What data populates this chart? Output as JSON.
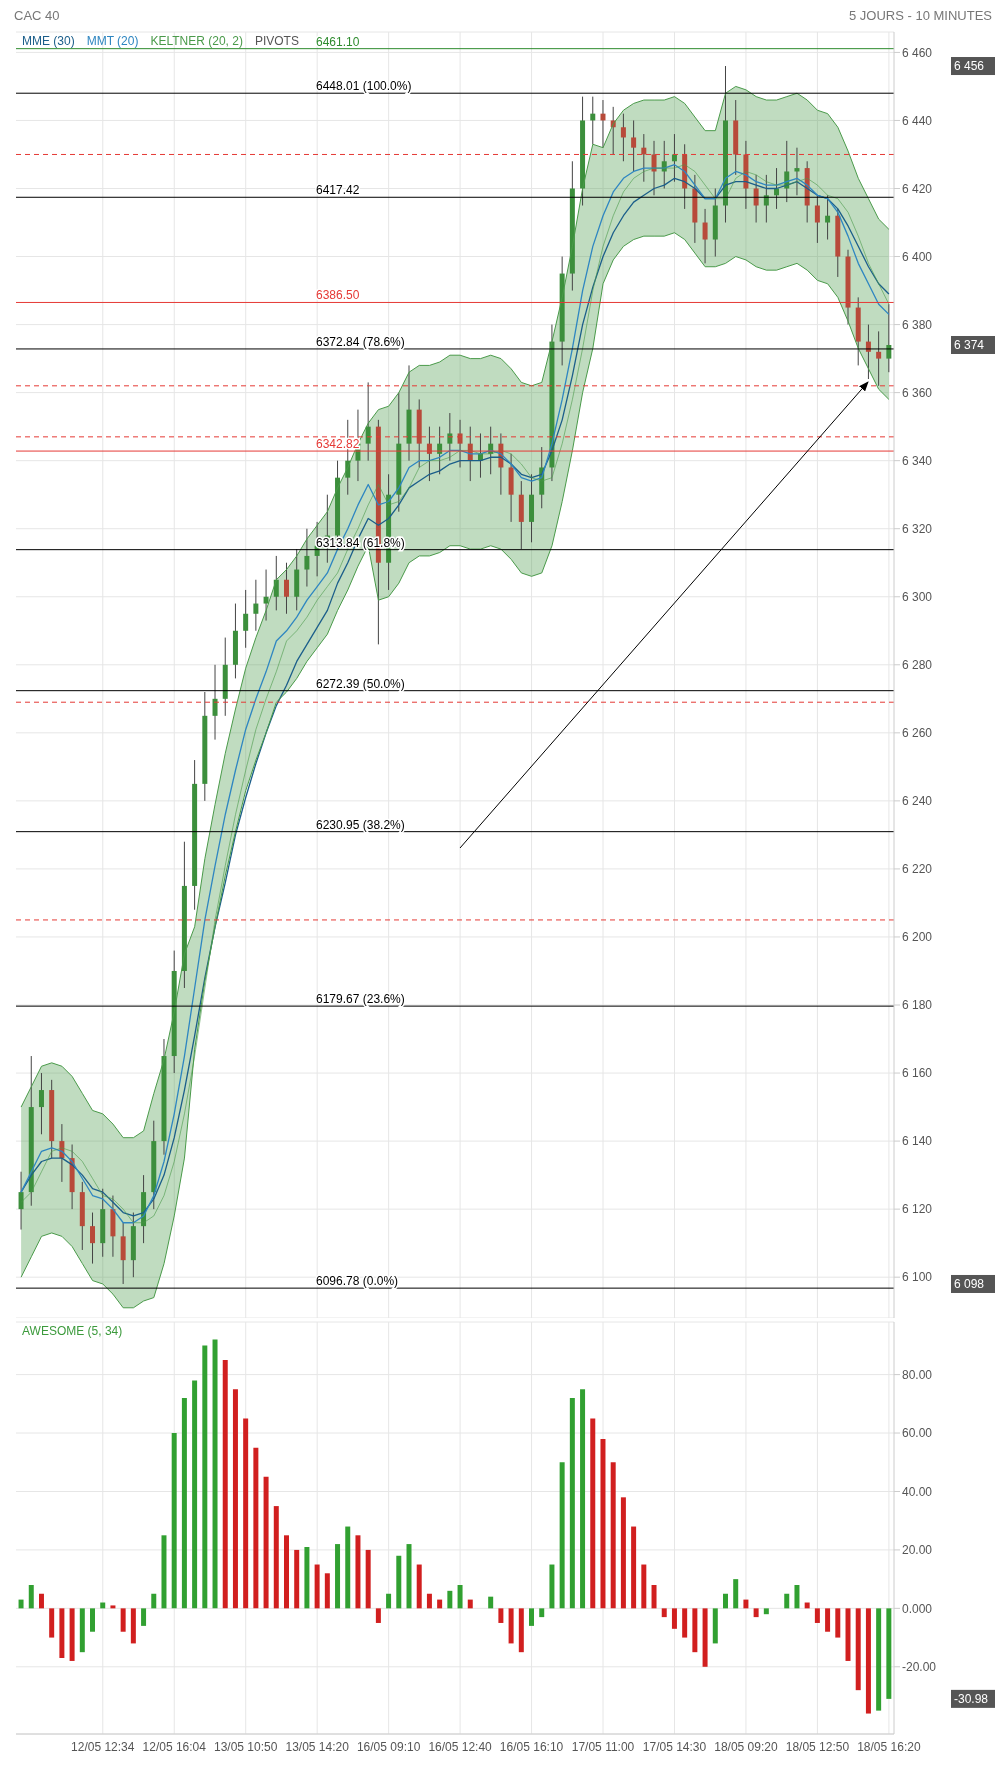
{
  "chart_data": [
    {
      "type": "candlestick",
      "title": "CAC 40",
      "subtitle": "5 JOURS - 10 MINUTES",
      "legend": "top left",
      "grid": true,
      "tick_labels": "y",
      "categories": [
        null,
        null,
        null,
        null,
        null,
        null,
        null,
        null,
        null,
        null,
        null,
        null,
        null,
        null,
        null,
        null,
        null,
        null,
        null,
        null,
        null,
        null,
        null,
        null,
        null,
        null,
        null,
        null,
        null,
        null,
        null,
        null,
        null,
        null,
        null,
        null,
        null,
        null,
        null,
        null,
        null,
        null,
        null,
        null,
        null,
        null,
        null,
        null,
        null,
        null,
        null,
        null,
        null,
        null,
        null,
        null,
        null,
        null,
        null,
        null,
        null,
        null,
        null,
        null,
        null,
        null,
        null,
        null,
        null,
        null,
        null,
        null,
        null,
        null,
        null,
        null,
        null,
        null,
        null,
        null,
        null,
        null,
        null,
        null,
        null,
        null
      ],
      "ylim": [
        6088,
        6466
      ],
      "yticks": [
        {
          "value": 6100,
          "label": "6 100"
        },
        {
          "value": 6120,
          "label": "6 120"
        },
        {
          "value": 6140,
          "label": "6 140"
        },
        {
          "value": 6160,
          "label": "6 160"
        },
        {
          "value": 6180,
          "label": "6 180"
        },
        {
          "value": 6200,
          "label": "6 200"
        },
        {
          "value": 6220,
          "label": "6 220"
        },
        {
          "value": 6240,
          "label": "6 240"
        },
        {
          "value": 6260,
          "label": "6 260"
        },
        {
          "value": 6280,
          "label": "6 280"
        },
        {
          "value": 6300,
          "label": "6 300"
        },
        {
          "value": 6320,
          "label": "6 320"
        },
        {
          "value": 6340,
          "label": "6 340"
        },
        {
          "value": 6360,
          "label": "6 360"
        },
        {
          "value": 6380,
          "label": "6 380"
        },
        {
          "value": 6400,
          "label": "6 400"
        },
        {
          "value": 6420,
          "label": "6 420"
        },
        {
          "value": 6440,
          "label": "6 440"
        },
        {
          "value": 6460,
          "label": "6 460"
        }
      ],
      "series": [
        {
          "colors": [
            "#3c8f3c",
            "#3c8f3c",
            "#3c8f3c",
            "#b84a3a",
            "#b84a3a",
            "#b84a3a",
            "#b84a3a",
            "#b84a3a",
            "#3c8f3c",
            "#b84a3a",
            "#b84a3a",
            "#3c8f3c",
            "#3c8f3c",
            "#3c8f3c",
            "#3c8f3c",
            "#3c8f3c",
            "#3c8f3c",
            "#3c8f3c",
            "#3c8f3c",
            "#3c8f3c",
            "#3c8f3c",
            "#3c8f3c",
            "#3c8f3c",
            "#3c8f3c",
            "#3c8f3c",
            "#3c8f3c",
            "#b84a3a",
            "#3c8f3c",
            "#3c8f3c",
            "#3c8f3c",
            "#3c8f3c",
            "#3c8f3c",
            "#3c8f3c",
            "#3c8f3c",
            "#3c8f3c",
            "#b84a3a",
            "#3c8f3c",
            "#3c8f3c",
            "#3c8f3c",
            "#b84a3a",
            "#b84a3a",
            "#3c8f3c",
            "#3c8f3c",
            "#b84a3a",
            "#b84a3a",
            "#3c8f3c",
            "#3c8f3c",
            "#b84a3a",
            "#b84a3a",
            "#b84a3a",
            "#3c8f3c",
            "#3c8f3c",
            "#3c8f3c",
            "#3c8f3c",
            "#3c8f3c",
            "#3c8f3c",
            "#3c8f3c",
            "#b84a3a",
            "#b84a3a",
            "#b84a3a",
            "#b84a3a",
            "#b84a3a",
            "#b84a3a",
            "#3c8f3c",
            "#3c8f3c",
            "#b84a3a",
            "#b84a3a",
            "#b84a3a",
            "#3c8f3c",
            "#3c8f3c",
            "#b84a3a",
            "#b84a3a",
            "#b84a3a",
            "#3c8f3c",
            "#3c8f3c",
            "#3c8f3c",
            "#3c8f3c",
            "#b84a3a",
            "#b84a3a",
            "#3c8f3c",
            "#b84a3a",
            "#b84a3a",
            "#b84a3a",
            "#b84a3a",
            "#b84a3a",
            "#3c8f3c"
          ],
          "ohlc": [
            [
              6120,
              6131,
              6114,
              6125
            ],
            [
              6125,
              6165,
              6121,
              6150
            ],
            [
              6150,
              6160,
              6142,
              6155
            ],
            [
              6155,
              6158,
              6135,
              6140
            ],
            [
              6140,
              6145,
              6128,
              6135
            ],
            [
              6135,
              6139,
              6120,
              6125
            ],
            [
              6125,
              6128,
              6108,
              6115
            ],
            [
              6115,
              6119,
              6104,
              6110
            ],
            [
              6110,
              6126,
              6106,
              6120
            ],
            [
              6120,
              6124,
              6106,
              6112
            ],
            [
              6112,
              6116,
              6098,
              6105
            ],
            [
              6105,
              6119,
              6100,
              6115
            ],
            [
              6115,
              6130,
              6110,
              6125
            ],
            [
              6125,
              6146,
              6120,
              6140
            ],
            [
              6140,
              6170,
              6136,
              6165
            ],
            [
              6165,
              6196,
              6160,
              6190
            ],
            [
              6190,
              6228,
              6185,
              6215
            ],
            [
              6215,
              6252,
              6208,
              6245
            ],
            [
              6245,
              6272,
              6240,
              6265
            ],
            [
              6265,
              6280,
              6258,
              6270
            ],
            [
              6270,
              6288,
              6265,
              6280
            ],
            [
              6280,
              6298,
              6276,
              6290
            ],
            [
              6290,
              6302,
              6285,
              6295
            ],
            [
              6295,
              6305,
              6290,
              6298
            ],
            [
              6298,
              6308,
              6293,
              6300
            ],
            [
              6300,
              6312,
              6296,
              6305
            ],
            [
              6305,
              6310,
              6295,
              6300
            ],
            [
              6300,
              6314,
              6296,
              6308
            ],
            [
              6308,
              6320,
              6303,
              6312
            ],
            [
              6312,
              6322,
              6306,
              6315
            ],
            [
              6315,
              6330,
              6310,
              6318
            ],
            [
              6318,
              6340,
              6314,
              6335
            ],
            [
              6335,
              6352,
              6330,
              6340
            ],
            [
              6340,
              6355,
              6334,
              6345
            ],
            [
              6345,
              6363,
              6340,
              6350
            ],
            [
              6350,
              6352,
              6286,
              6310
            ],
            [
              6310,
              6336,
              6302,
              6330
            ],
            [
              6330,
              6360,
              6325,
              6345
            ],
            [
              6345,
              6368,
              6340,
              6355
            ],
            [
              6355,
              6358,
              6338,
              6345
            ],
            [
              6345,
              6350,
              6334,
              6342
            ],
            [
              6342,
              6350,
              6336,
              6345
            ],
            [
              6345,
              6354,
              6340,
              6348
            ],
            [
              6348,
              6352,
              6338,
              6345
            ],
            [
              6345,
              6350,
              6334,
              6340
            ],
            [
              6340,
              6348,
              6335,
              6342
            ],
            [
              6342,
              6350,
              6336,
              6345
            ],
            [
              6345,
              6348,
              6330,
              6338
            ],
            [
              6338,
              6342,
              6322,
              6330
            ],
            [
              6330,
              6334,
              6314,
              6322
            ],
            [
              6322,
              6336,
              6316,
              6330
            ],
            [
              6330,
              6344,
              6326,
              6338
            ],
            [
              6338,
              6380,
              6334,
              6375
            ],
            [
              6375,
              6400,
              6368,
              6395
            ],
            [
              6395,
              6428,
              6390,
              6420
            ],
            [
              6420,
              6447,
              6415,
              6440
            ],
            [
              6440,
              6447,
              6433,
              6442
            ],
            [
              6442,
              6446,
              6432,
              6440
            ],
            [
              6440,
              6444,
              6430,
              6438
            ],
            [
              6438,
              6442,
              6428,
              6435
            ],
            [
              6435,
              6440,
              6425,
              6432
            ],
            [
              6432,
              6436,
              6422,
              6430
            ],
            [
              6430,
              6434,
              6418,
              6425
            ],
            [
              6425,
              6434,
              6420,
              6428
            ],
            [
              6428,
              6436,
              6422,
              6430
            ],
            [
              6430,
              6433,
              6414,
              6420
            ],
            [
              6420,
              6424,
              6404,
              6410
            ],
            [
              6410,
              6414,
              6398,
              6405
            ],
            [
              6405,
              6420,
              6400,
              6415
            ],
            [
              6415,
              6456,
              6410,
              6440
            ],
            [
              6440,
              6446,
              6424,
              6430
            ],
            [
              6430,
              6434,
              6414,
              6420
            ],
            [
              6420,
              6424,
              6410,
              6415
            ],
            [
              6415,
              6424,
              6410,
              6418
            ],
            [
              6418,
              6426,
              6414,
              6420
            ],
            [
              6420,
              6434,
              6416,
              6425
            ],
            [
              6425,
              6432,
              6418,
              6426
            ],
            [
              6426,
              6428,
              6410,
              6415
            ],
            [
              6415,
              6418,
              6404,
              6410
            ],
            [
              6410,
              6418,
              6405,
              6412
            ],
            [
              6412,
              6414,
              6394,
              6400
            ],
            [
              6400,
              6402,
              6380,
              6385
            ],
            [
              6385,
              6388,
              6368,
              6375
            ],
            [
              6375,
              6380,
              6364,
              6372
            ],
            [
              6372,
              6378,
              6362,
              6370
            ],
            [
              6370,
              6386,
              6366,
              6374
            ]
          ]
        },
        {
          "type": "line",
          "name": "MME (30)",
          "color": "#1b5e8a",
          "values": [
            6125,
            6130,
            6134,
            6135,
            6135,
            6133,
            6130,
            6126,
            6125,
            6122,
            6119,
            6118,
            6119,
            6123,
            6130,
            6141,
            6155,
            6171,
            6188,
            6203,
            6216,
            6230,
            6241,
            6251,
            6260,
            6268,
            6274,
            6281,
            6286,
            6291,
            6296,
            6304,
            6310,
            6317,
            6323,
            6321,
            6323,
            6327,
            6332,
            6334,
            6336,
            6337,
            6339,
            6340,
            6340,
            6340,
            6341,
            6341,
            6339,
            6336,
            6335,
            6336,
            6343,
            6352,
            6365,
            6380,
            6391,
            6400,
            6407,
            6412,
            6416,
            6418,
            6420,
            6421,
            6423,
            6422,
            6420,
            6417,
            6417,
            6421,
            6422,
            6422,
            6421,
            6420,
            6420,
            6421,
            6422,
            6420,
            6418,
            6417,
            6414,
            6409,
            6403,
            6397,
            6392,
            6389
          ]
        },
        {
          "type": "line",
          "name": "MMT (20)",
          "color": "#2e86c1",
          "values": [
            6125,
            6131,
            6137,
            6138,
            6137,
            6134,
            6129,
            6124,
            6123,
            6120,
            6116,
            6116,
            6118,
            6124,
            6134,
            6148,
            6165,
            6185,
            6205,
            6221,
            6236,
            6249,
            6261,
            6270,
            6278,
            6287,
            6290,
            6294,
            6299,
            6303,
            6307,
            6314,
            6320,
            6327,
            6333,
            6327,
            6328,
            6332,
            6338,
            6340,
            6340,
            6341,
            6343,
            6343,
            6342,
            6342,
            6343,
            6342,
            6339,
            6335,
            6334,
            6335,
            6345,
            6358,
            6373,
            6390,
            6403,
            6412,
            6419,
            6423,
            6425,
            6426,
            6426,
            6426,
            6427,
            6425,
            6421,
            6417,
            6417,
            6423,
            6425,
            6424,
            6422,
            6421,
            6421,
            6422,
            6423,
            6421,
            6418,
            6417,
            6413,
            6406,
            6398,
            6392,
            6386,
            6383
          ]
        },
        {
          "type": "line",
          "name": "KELTNER (20, 2)",
          "color": "#4a9a4a",
          "values": [
            6122,
            6125,
            6131,
            6137,
            6138,
            6137,
            6134,
            6129,
            6124,
            6123,
            6120,
            6116,
            6116,
            6118,
            6124,
            6134,
            6148,
            6165,
            6185,
            6205,
            6221,
            6236,
            6249,
            6261,
            6270,
            6278,
            6287,
            6290,
            6294,
            6299,
            6303,
            6307,
            6314,
            6320,
            6327,
            6333,
            6327,
            6328,
            6332,
            6338,
            6340,
            6340,
            6341,
            6343,
            6343,
            6342,
            6342,
            6343,
            6342,
            6339,
            6335,
            6334,
            6335,
            6345,
            6358,
            6373,
            6390,
            6403,
            6412,
            6419,
            6423,
            6425,
            6426,
            6426,
            6426,
            6427,
            6425,
            6421,
            6417,
            6417,
            6423,
            6425,
            6424,
            6422,
            6421,
            6421,
            6422,
            6423,
            6421,
            6418,
            6417,
            6413,
            6406,
            6398,
            6392,
            6386
          ],
          "upper": [
            6150,
            6156,
            6162,
            6163,
            6162,
            6159,
            6154,
            6149,
            6148,
            6145,
            6141,
            6141,
            6143,
            6154,
            6164,
            6178,
            6195,
            6203,
            6223,
            6239,
            6254,
            6267,
            6279,
            6288,
            6296,
            6305,
            6308,
            6312,
            6317,
            6321,
            6325,
            6332,
            6338,
            6345,
            6351,
            6355,
            6356,
            6360,
            6366,
            6368,
            6368,
            6369,
            6371,
            6371,
            6370,
            6370,
            6371,
            6370,
            6367,
            6363,
            6362,
            6363,
            6375,
            6388,
            6403,
            6420,
            6433,
            6432,
            6439,
            6443,
            6445,
            6446,
            6446,
            6446,
            6447,
            6445,
            6441,
            6437,
            6437,
            6448,
            6450,
            6449,
            6447,
            6446,
            6446,
            6447,
            6448,
            6446,
            6443,
            6442,
            6438,
            6431,
            6423,
            6417,
            6411,
            6408
          ],
          "lower": [
            6100,
            6106,
            6112,
            6113,
            6112,
            6109,
            6104,
            6099,
            6098,
            6095,
            6091,
            6091,
            6093,
            6094,
            6104,
            6118,
            6135,
            6167,
            6187,
            6203,
            6218,
            6231,
            6243,
            6252,
            6260,
            6269,
            6272,
            6276,
            6281,
            6285,
            6289,
            6296,
            6302,
            6309,
            6315,
            6299,
            6300,
            6304,
            6310,
            6312,
            6312,
            6313,
            6315,
            6315,
            6314,
            6314,
            6315,
            6314,
            6311,
            6307,
            6306,
            6307,
            6315,
            6328,
            6343,
            6360,
            6373,
            6392,
            6399,
            6403,
            6405,
            6406,
            6406,
            6406,
            6407,
            6405,
            6401,
            6397,
            6397,
            6398,
            6400,
            6399,
            6397,
            6396,
            6396,
            6397,
            6398,
            6396,
            6393,
            6392,
            6388,
            6381,
            6373,
            6367,
            6361,
            6358
          ]
        },
        {
          "type": "line",
          "color": "#4a9a4a",
          "values": [
            6150,
            6156,
            6162,
            6163,
            6162,
            6159,
            6154,
            6149,
            6148,
            6145,
            6141,
            6141,
            6143,
            6154,
            6164,
            6178,
            6195,
            6203,
            6223,
            6239,
            6254,
            6267,
            6279,
            6288,
            6296,
            6305,
            6308,
            6312,
            6317,
            6321,
            6325,
            6332,
            6338,
            6345,
            6351,
            6355,
            6356,
            6360,
            6366,
            6368,
            6368,
            6369,
            6371,
            6371,
            6370,
            6370,
            6371,
            6370,
            6367,
            6363,
            6362,
            6363,
            6375,
            6388,
            6403,
            6420,
            6433,
            6432,
            6439,
            6443,
            6445,
            6446,
            6446,
            6446,
            6447,
            6445,
            6441,
            6437,
            6437,
            6448,
            6450,
            6449,
            6447,
            6446,
            6446,
            6447,
            6448,
            6446,
            6443,
            6442,
            6438,
            6431,
            6423,
            6417,
            6411,
            6408
          ]
        },
        {
          "type": "line",
          "color": "#4a9a4a",
          "values": [
            6100,
            6106,
            6112,
            6113,
            6112,
            6109,
            6104,
            6099,
            6098,
            6095,
            6091,
            6091,
            6093,
            6094,
            6104,
            6118,
            6135,
            6167,
            6187,
            6203,
            6218,
            6231,
            6243,
            6252,
            6260,
            6269,
            6272,
            6276,
            6281,
            6285,
            6289,
            6296,
            6302,
            6309,
            6315,
            6299,
            6300,
            6304,
            6310,
            6312,
            6312,
            6313,
            6315,
            6315,
            6314,
            6314,
            6315,
            6314,
            6311,
            6307,
            6306,
            6307,
            6315,
            6328,
            6343,
            6360,
            6373,
            6392,
            6399,
            6403,
            6405,
            6406,
            6406,
            6406,
            6407,
            6405,
            6401,
            6397,
            6397,
            6398,
            6400,
            6399,
            6397,
            6396,
            6396,
            6397,
            6398,
            6396,
            6393,
            6392,
            6388,
            6381,
            6373,
            6367,
            6361,
            6358
          ]
        }
      ],
      "ref_lines": [
        {
          "axis": "y",
          "value": 6448.01,
          "label": "6448.01  (100.0%)",
          "color": "#000000"
        },
        {
          "axis": "y",
          "value": 6372.84,
          "label": "6372.84  (78.6%)",
          "color": "#000000"
        },
        {
          "axis": "y",
          "value": 6313.84,
          "label": "6313.84  (61.8%)",
          "color": "#000000"
        },
        {
          "axis": "y",
          "value": 6272.39,
          "label": "6272.39  (50.0%)",
          "color": "#000000"
        },
        {
          "axis": "y",
          "value": 6230.95,
          "label": "6230.95  (38.2%)",
          "color": "#000000"
        },
        {
          "axis": "y",
          "value": 6179.67,
          "label": "6179.67  (23.6%)",
          "color": "#000000"
        },
        {
          "axis": "y",
          "value": 6096.78,
          "label": "6096.78  (0.0%)",
          "color": "#000000"
        },
        {
          "axis": "y",
          "value": 6461.1,
          "label": "6461.10",
          "color": "#2e8b2e"
        },
        {
          "axis": "y",
          "value": 6417.42,
          "label": "6417.42",
          "color": "#000000"
        },
        {
          "axis": "y",
          "value": 6386.5,
          "label": "6386.50",
          "color": "#e53935"
        },
        {
          "axis": "y",
          "value": 6342.82,
          "label": "6342.82",
          "color": "#e53935"
        },
        {
          "axis": "y",
          "value": 6430,
          "color": "#e53935",
          "line_style": "dashed"
        },
        {
          "axis": "y",
          "value": 6362,
          "color": "#e53935",
          "line_style": "dashed"
        },
        {
          "axis": "y",
          "value": 6347,
          "color": "#e53935",
          "line_style": "dashed"
        },
        {
          "axis": "y",
          "value": 6269,
          "color": "#e53935",
          "line_style": "dashed"
        },
        {
          "axis": "y",
          "value": 6205,
          "color": "#e53935",
          "line_style": "dashed"
        }
      ],
      "annotations": [
        "PIVOTS",
        "6 456",
        "6 374",
        "6 098"
      ]
    },
    {
      "type": "bar",
      "title": "AWESOME (5, 34)",
      "grid": true,
      "categories": [
        null,
        null,
        null,
        null,
        null,
        null,
        null,
        null,
        "12/05 12:34",
        null,
        null,
        null,
        null,
        null,
        null,
        "12/05 16:04",
        null,
        null,
        null,
        null,
        null,
        null,
        "13/05 10:50",
        null,
        null,
        null,
        null,
        null,
        null,
        "13/05 14:20",
        null,
        null,
        null,
        null,
        null,
        null,
        "16/05 09:10",
        null,
        null,
        null,
        null,
        null,
        null,
        "16/05 12:40",
        null,
        null,
        null,
        null,
        null,
        null,
        "16/05 16:10",
        null,
        null,
        null,
        null,
        null,
        null,
        "17/05 11:00",
        null,
        null,
        null,
        null,
        null,
        null,
        "17/05 14:30",
        null,
        null,
        null,
        null,
        null,
        null,
        "18/05 09:20",
        null,
        null,
        null,
        null,
        null,
        null,
        "18/05 12:50",
        null,
        null,
        null,
        null,
        null,
        null,
        "18/05 16:20"
      ],
      "ylim": [
        -43,
        98
      ],
      "yticks": [
        {
          "value": -20,
          "label": "-20.00"
        },
        {
          "value": 0,
          "label": "0.000"
        },
        {
          "value": 20,
          "label": "20.00"
        },
        {
          "value": 40,
          "label": "40.00"
        },
        {
          "value": 60,
          "label": "60.00"
        },
        {
          "value": 80,
          "label": "80.00"
        }
      ],
      "values": [
        3,
        8,
        5,
        -10,
        -17,
        -18,
        -15,
        -8,
        2,
        1,
        -8,
        -12,
        -6,
        5,
        25,
        60,
        72,
        78,
        90,
        92,
        85,
        75,
        65,
        55,
        45,
        35,
        25,
        20,
        21,
        15,
        12,
        22,
        28,
        25,
        20,
        -5,
        5,
        18,
        22,
        15,
        5,
        3,
        6,
        8,
        3,
        0,
        4,
        -5,
        -12,
        -15,
        -6,
        -3,
        15,
        50,
        72,
        75,
        65,
        58,
        50,
        38,
        28,
        15,
        8,
        -3,
        -7,
        -10,
        -15,
        -20,
        -12,
        5,
        10,
        3,
        -3,
        -2,
        0,
        5,
        8,
        2,
        -5,
        -8,
        -10,
        -18,
        -28,
        -36,
        -35,
        -30.98
      ],
      "colors": [
        "#31a031",
        "#31a031",
        "#d11f1f",
        "#d11f1f",
        "#d11f1f",
        "#d11f1f",
        "#31a031",
        "#31a031",
        "#31a031",
        "#d11f1f",
        "#d11f1f",
        "#d11f1f",
        "#31a031",
        "#31a031",
        "#31a031",
        "#31a031",
        "#31a031",
        "#31a031",
        "#31a031",
        "#31a031",
        "#d11f1f",
        "#d11f1f",
        "#d11f1f",
        "#d11f1f",
        "#d11f1f",
        "#d11f1f",
        "#d11f1f",
        "#d11f1f",
        "#31a031",
        "#d11f1f",
        "#d11f1f",
        "#31a031",
        "#31a031",
        "#d11f1f",
        "#d11f1f",
        "#d11f1f",
        "#31a031",
        "#31a031",
        "#31a031",
        "#d11f1f",
        "#d11f1f",
        "#d11f1f",
        "#31a031",
        "#31a031",
        "#d11f1f",
        "#d11f1f",
        "#31a031",
        "#d11f1f",
        "#d11f1f",
        "#d11f1f",
        "#31a031",
        "#31a031",
        "#31a031",
        "#31a031",
        "#31a031",
        "#31a031",
        "#d11f1f",
        "#d11f1f",
        "#d11f1f",
        "#d11f1f",
        "#d11f1f",
        "#d11f1f",
        "#d11f1f",
        "#d11f1f",
        "#d11f1f",
        "#d11f1f",
        "#d11f1f",
        "#d11f1f",
        "#31a031",
        "#31a031",
        "#31a031",
        "#d11f1f",
        "#d11f1f",
        "#31a031",
        "#31a031",
        "#31a031",
        "#31a031",
        "#d11f1f",
        "#d11f1f",
        "#d11f1f",
        "#d11f1f",
        "#d11f1f",
        "#d11f1f",
        "#d11f1f",
        "#31a031",
        "#31a031"
      ],
      "annotations": [
        "-30.98"
      ]
    }
  ]
}
